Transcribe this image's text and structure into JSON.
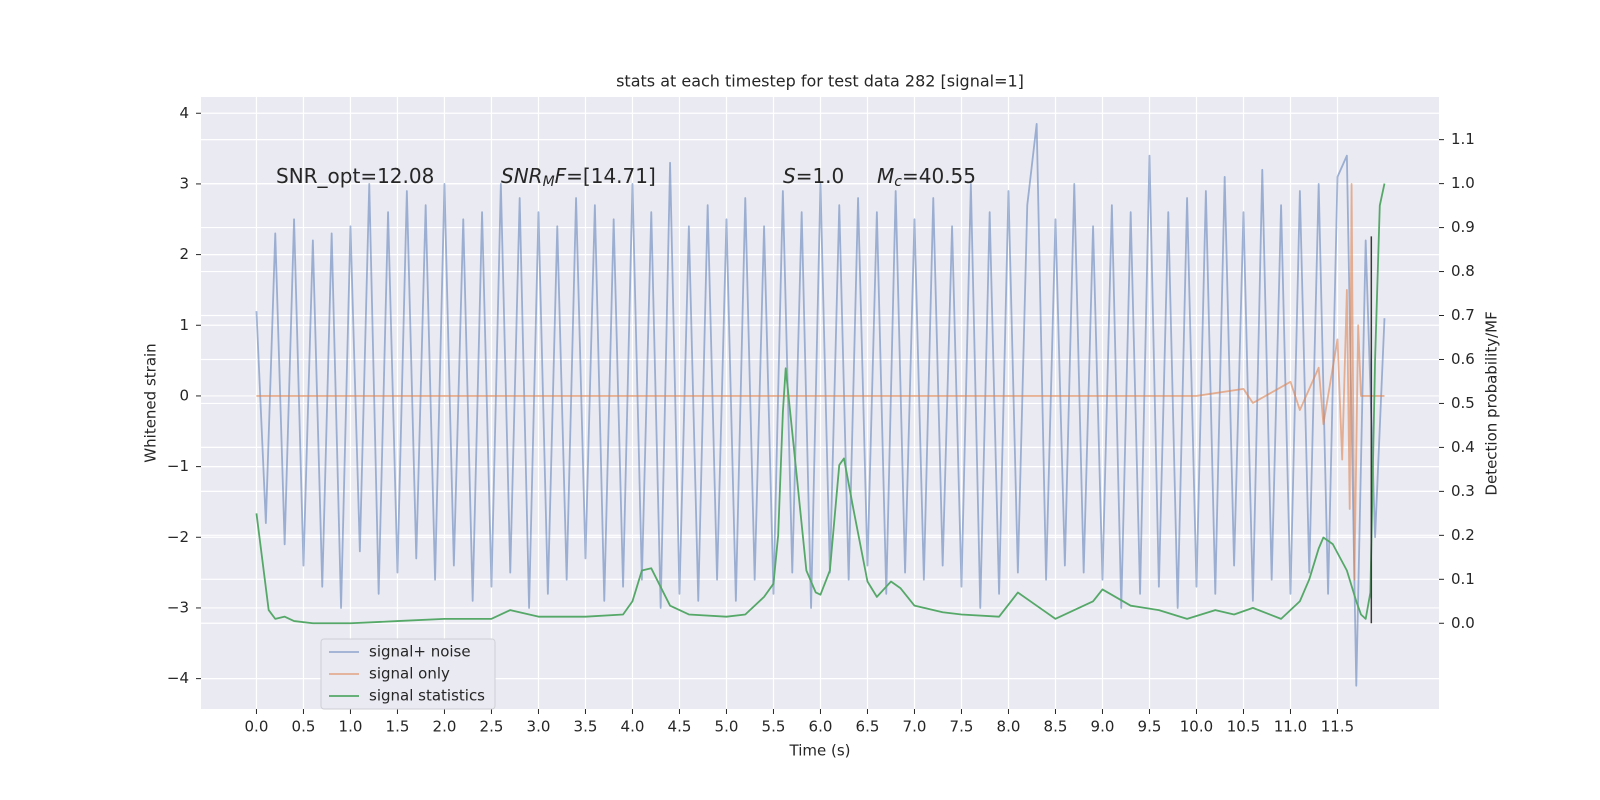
{
  "chart_data": {
    "type": "line",
    "title": "stats at each timestep for test data 282 [signal=1]",
    "xlabel": "Time (s)",
    "ylabel": "Whitened strain",
    "y2label": "Detection probability/MF",
    "xlim": [
      -0.59,
      12.58
    ],
    "ylim": [
      -4.43,
      4.23
    ],
    "y2lim": [
      -0.195,
      1.197
    ],
    "xticks": [
      {
        "value": 0,
        "label": "0.0"
      },
      {
        "value": 0.5,
        "label": "0.5"
      },
      {
        "value": 1,
        "label": "1.0"
      },
      {
        "value": 1.5,
        "label": "1.5"
      },
      {
        "value": 2,
        "label": "2.0"
      },
      {
        "value": 2.5,
        "label": "2.5"
      },
      {
        "value": 3,
        "label": "3.0"
      },
      {
        "value": 3.5,
        "label": "3.5"
      },
      {
        "value": 4,
        "label": "4.0"
      },
      {
        "value": 4.5,
        "label": "4.5"
      },
      {
        "value": 5,
        "label": "5.0"
      },
      {
        "value": 5.5,
        "label": "5.5"
      },
      {
        "value": 6,
        "label": "6.0"
      },
      {
        "value": 6.5,
        "label": "6.5"
      },
      {
        "value": 7,
        "label": "7.0"
      },
      {
        "value": 7.5,
        "label": "7.5"
      },
      {
        "value": 8,
        "label": "8.0"
      },
      {
        "value": 8.5,
        "label": "8.5"
      },
      {
        "value": 9,
        "label": "9.0"
      },
      {
        "value": 9.5,
        "label": "9.5"
      },
      {
        "value": 10,
        "label": "10.0"
      },
      {
        "value": 10.5,
        "label": "10.5"
      },
      {
        "value": 11,
        "label": "11.0"
      },
      {
        "value": 11.5,
        "label": "11.5"
      }
    ],
    "yticks": [
      {
        "value": -4,
        "label": "−4"
      },
      {
        "value": -3,
        "label": "−3"
      },
      {
        "value": -2,
        "label": "−2"
      },
      {
        "value": -1,
        "label": "−1"
      },
      0,
      1,
      2,
      3,
      4
    ],
    "y2ticks": [
      {
        "value": 0,
        "label": "0.0"
      },
      {
        "value": 0.1,
        "label": "0.1"
      },
      {
        "value": 0.2,
        "label": "0.2"
      },
      {
        "value": 0.3,
        "label": "0.3"
      },
      {
        "value": 0.4,
        "label": "0.4"
      },
      {
        "value": 0.5,
        "label": "0.5"
      },
      {
        "value": 0.6,
        "label": "0.6"
      },
      {
        "value": 0.7,
        "label": "0.7"
      },
      {
        "value": 0.8,
        "label": "0.8"
      },
      {
        "value": 0.9,
        "label": "0.9"
      },
      {
        "value": 1,
        "label": "1.0"
      },
      {
        "value": 1.1,
        "label": "1.1"
      }
    ],
    "grid": true,
    "legend": "lower left",
    "series": [
      {
        "name": "signal+ noise",
        "color": "#4c72b0",
        "opacity": 0.5,
        "x": [
          0,
          0.1,
          0.2,
          0.3,
          0.4,
          0.5,
          0.6,
          0.7,
          0.8,
          0.9,
          1,
          1.1,
          1.2,
          1.3,
          1.4,
          1.5,
          1.6,
          1.7,
          1.8,
          1.9,
          2,
          2.1,
          2.2,
          2.3,
          2.4,
          2.5,
          2.6,
          2.7,
          2.8,
          2.9,
          3,
          3.1,
          3.2,
          3.3,
          3.4,
          3.5,
          3.6,
          3.7,
          3.8,
          3.9,
          4,
          4.1,
          4.2,
          4.3,
          4.4,
          4.5,
          4.6,
          4.7,
          4.8,
          4.9,
          5,
          5.1,
          5.2,
          5.3,
          5.4,
          5.5,
          5.6,
          5.7,
          5.8,
          5.9,
          6,
          6.1,
          6.2,
          6.3,
          6.4,
          6.5,
          6.6,
          6.7,
          6.8,
          6.9,
          7,
          7.1,
          7.2,
          7.3,
          7.4,
          7.5,
          7.6,
          7.7,
          7.8,
          7.9,
          8,
          8.1,
          8.2,
          8.3,
          8.4,
          8.5,
          8.6,
          8.7,
          8.8,
          8.9,
          9,
          9.1,
          9.2,
          9.3,
          9.4,
          9.5,
          9.6,
          9.7,
          9.8,
          9.9,
          10,
          10.1,
          10.2,
          10.3,
          10.4,
          10.5,
          10.6,
          10.7,
          10.8,
          10.9,
          11,
          11.1,
          11.2,
          11.3,
          11.4,
          11.5,
          11.6,
          11.7,
          11.8,
          11.9,
          12
        ],
        "values": [
          1.2,
          -1.8,
          2.3,
          -2.1,
          2.5,
          -2.4,
          2.2,
          -2.7,
          2.3,
          -3.0,
          2.4,
          -2.2,
          3.0,
          -2.8,
          2.6,
          -2.5,
          2.9,
          -2.3,
          2.7,
          -2.6,
          3.0,
          -2.4,
          2.5,
          -2.9,
          2.6,
          -2.7,
          3.0,
          -2.5,
          2.8,
          -3.0,
          2.6,
          -2.8,
          2.4,
          -2.6,
          2.8,
          -2.3,
          2.7,
          -2.9,
          2.5,
          -2.7,
          3.0,
          -2.6,
          2.6,
          -3.0,
          3.3,
          -2.8,
          2.4,
          -2.9,
          2.7,
          -2.6,
          2.5,
          -2.9,
          2.8,
          -2.6,
          2.4,
          -2.8,
          2.9,
          -2.5,
          2.6,
          -3.0,
          3.0,
          -2.5,
          2.7,
          -2.6,
          2.8,
          -2.4,
          2.6,
          -2.8,
          2.9,
          -2.5,
          2.5,
          -2.6,
          2.8,
          -2.4,
          2.4,
          -2.7,
          3.0,
          -3.0,
          2.6,
          -2.8,
          2.9,
          -2.5,
          2.7,
          3.85,
          -2.6,
          2.5,
          -2.4,
          3.0,
          -2.5,
          2.4,
          -2.6,
          2.7,
          -3.0,
          2.6,
          -2.8,
          3.4,
          -2.7,
          2.6,
          -3.0,
          2.8,
          -2.7,
          2.9,
          -2.8,
          3.1,
          -2.4,
          2.6,
          -2.9,
          3.2,
          -2.6,
          2.7,
          -2.8,
          2.9,
          -2.5,
          3.0,
          -2.8,
          3.1,
          3.4,
          -4.1,
          2.2,
          -2.0,
          1.1
        ]
      },
      {
        "name": "signal only",
        "color": "#dd8452",
        "opacity": 0.6,
        "x": [
          0,
          10,
          10.5,
          10.6,
          11,
          11.1,
          11.3,
          11.35,
          11.5,
          11.55,
          11.6,
          11.63,
          11.65,
          11.68,
          11.72,
          11.75,
          12
        ],
        "values": [
          0,
          0,
          0.1,
          -0.1,
          0.2,
          -0.2,
          0.4,
          -0.4,
          0.8,
          -0.9,
          1.5,
          -1.6,
          3.0,
          -2.6,
          1.0,
          0,
          0
        ]
      },
      {
        "name": "signal statistics",
        "color": "#55a868",
        "axis": "y2",
        "opacity": 1,
        "x": [
          0,
          0.13,
          0.2,
          0.3,
          0.4,
          0.6,
          1,
          1.5,
          2,
          2.5,
          2.7,
          3,
          3.5,
          3.9,
          4,
          4.1,
          4.2,
          4.4,
          4.6,
          5,
          5.2,
          5.4,
          5.5,
          5.55,
          5.6,
          5.63,
          5.75,
          5.85,
          5.95,
          6,
          6.1,
          6.2,
          6.25,
          6.35,
          6.5,
          6.6,
          6.75,
          6.85,
          7,
          7.3,
          7.5,
          7.9,
          8.1,
          8.3,
          8.5,
          8.9,
          9,
          9.3,
          9.6,
          9.9,
          10.2,
          10.4,
          10.6,
          10.9,
          11.1,
          11.2,
          11.3,
          11.35,
          11.45,
          11.6,
          11.7,
          11.75,
          11.8,
          11.85,
          11.9,
          11.95,
          12
        ],
        "values": [
          0.25,
          0.03,
          0.01,
          0.015,
          0.005,
          0,
          0,
          0.005,
          0.01,
          0.01,
          0.03,
          0.015,
          0.015,
          0.02,
          0.05,
          0.12,
          0.125,
          0.04,
          0.02,
          0.015,
          0.02,
          0.06,
          0.09,
          0.2,
          0.48,
          0.58,
          0.33,
          0.12,
          0.07,
          0.065,
          0.12,
          0.36,
          0.375,
          0.26,
          0.095,
          0.06,
          0.095,
          0.08,
          0.04,
          0.025,
          0.02,
          0.015,
          0.07,
          0.04,
          0.01,
          0.05,
          0.077,
          0.04,
          0.03,
          0.01,
          0.03,
          0.02,
          0.035,
          0.01,
          0.05,
          0.1,
          0.17,
          0.195,
          0.18,
          0.12,
          0.05,
          0.02,
          0.01,
          0.07,
          0.6,
          0.95,
          1.0
        ]
      }
    ],
    "marker": {
      "x": 11.86,
      "values": [
        0,
        0.88
      ],
      "color": "#3a3a3a",
      "axis": "y2"
    },
    "annotations": [
      [
        {
          "text": "SNR_opt=12.08",
          "style": "normal"
        }
      ],
      [
        {
          "text": "SNR",
          "style": "italic"
        },
        {
          "text": "M",
          "style": "italic-sub"
        },
        {
          "text": "F",
          "style": "italic"
        },
        {
          "text": "=[14.71]",
          "style": "normal"
        }
      ],
      [
        {
          "text": "S",
          "style": "italic"
        },
        {
          "text": "=1.0",
          "style": "normal"
        }
      ],
      [
        {
          "text": "M",
          "style": "italic"
        },
        {
          "text": "c",
          "style": "italic-sub"
        },
        {
          "text": "=40.55",
          "style": "normal"
        }
      ]
    ]
  }
}
